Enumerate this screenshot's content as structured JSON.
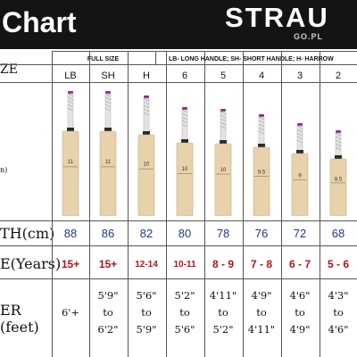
{
  "header": {
    "title": "Chart",
    "brand": "STRAU",
    "brand_sub": "GO.PL"
  },
  "groups": {
    "full_size": "FULL SIZE",
    "legend": "LB- LONG HANDLE; SH- SHORT HANDLE; H- HARROW"
  },
  "rows": {
    "size_label": "ZE",
    "size_sub": "n)",
    "length_label": "TH(cm)",
    "age_label": "E(Years)",
    "height_label_1": "ER",
    "height_label_2": "(feet)"
  },
  "columns": [
    {
      "size": "LB",
      "blade_mark": "11",
      "length": "88",
      "age": "15+",
      "height": [
        "6'+"
      ]
    },
    {
      "size": "SH",
      "blade_mark": "11",
      "length": "86",
      "age": "15+",
      "height": [
        "5'9\"",
        "to",
        "6'2\""
      ]
    },
    {
      "size": "H",
      "blade_mark": "10",
      "length": "82",
      "age": "12-14",
      "height": [
        "5'6\"",
        "to",
        "5'9\""
      ]
    },
    {
      "size": "6",
      "blade_mark": "10",
      "length": "80",
      "age": "10-11",
      "height": [
        "5'2\"",
        "to",
        "5'6\""
      ]
    },
    {
      "size": "5",
      "blade_mark": "10",
      "length": "78",
      "age": "8 - 9",
      "height": [
        "4'11\"",
        "to",
        "5'2\""
      ]
    },
    {
      "size": "4",
      "blade_mark": "9.5",
      "length": "76",
      "age": "7 - 8",
      "height": [
        "4'9\"",
        "to",
        "4'11\""
      ]
    },
    {
      "size": "3",
      "blade_mark": "9",
      "length": "72",
      "age": "6 - 7",
      "height": [
        "4'6\"",
        "to",
        "4'9\""
      ]
    },
    {
      "size": "2",
      "blade_mark": "8.5",
      "length": "68",
      "age": "5 - 6",
      "height": [
        "4'3\"",
        "to",
        "4'6\""
      ]
    }
  ],
  "colors": {
    "header_bg": "#141414",
    "length_text": "#1e3a8a",
    "age_text": "#b0141c",
    "blade": "#e8d2ac",
    "grip": "#e3e3e3",
    "grip_cap": "#8a2f86"
  }
}
